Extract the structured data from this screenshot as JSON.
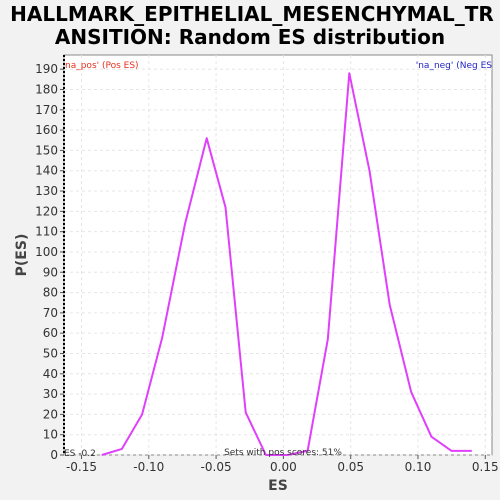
{
  "chart_data": {
    "type": "line",
    "title_line1": "HALLMARK_EPITHELIAL_MESENCHYMAL_TR",
    "title_line2": "ANSITION: Random ES distribution",
    "xlabel": "ES",
    "ylabel": "P(ES)",
    "xlim": [
      -0.163,
      0.155
    ],
    "ylim": [
      0,
      197
    ],
    "x_ticks": [
      -0.15,
      -0.1,
      -0.05,
      0.0,
      0.05,
      0.1,
      0.15
    ],
    "x_tick_labels": [
      "-0.15",
      "-0.10",
      "-0.05",
      "0.00",
      "0.05",
      "0.10",
      "0.15"
    ],
    "y_ticks": [
      0,
      10,
      20,
      30,
      40,
      50,
      60,
      70,
      80,
      90,
      100,
      110,
      120,
      130,
      140,
      150,
      160,
      170,
      180,
      190
    ],
    "grid": true,
    "series": [
      {
        "color": "#e040fb",
        "x": [
          -0.135,
          -0.12,
          -0.105,
          -0.09,
          -0.073,
          -0.057,
          -0.043,
          -0.028,
          -0.013,
          0.003,
          0.018,
          0.033,
          0.049,
          0.064,
          0.079,
          0.095,
          0.11,
          0.125,
          0.14
        ],
        "y": [
          0,
          3,
          20,
          58,
          114,
          156,
          122,
          21,
          0,
          0,
          2,
          57,
          188,
          140,
          74,
          31,
          9,
          2,
          2
        ]
      }
    ],
    "annotations": {
      "pos_label": "na_pos' (Pos ES)",
      "pos_color": "#e8311e",
      "neg_label": "'na_neg' (Neg ES",
      "neg_color": "#2323c8",
      "es_label": "ES -0.2",
      "sets_label": "Sets with pos scores: 51%"
    }
  }
}
